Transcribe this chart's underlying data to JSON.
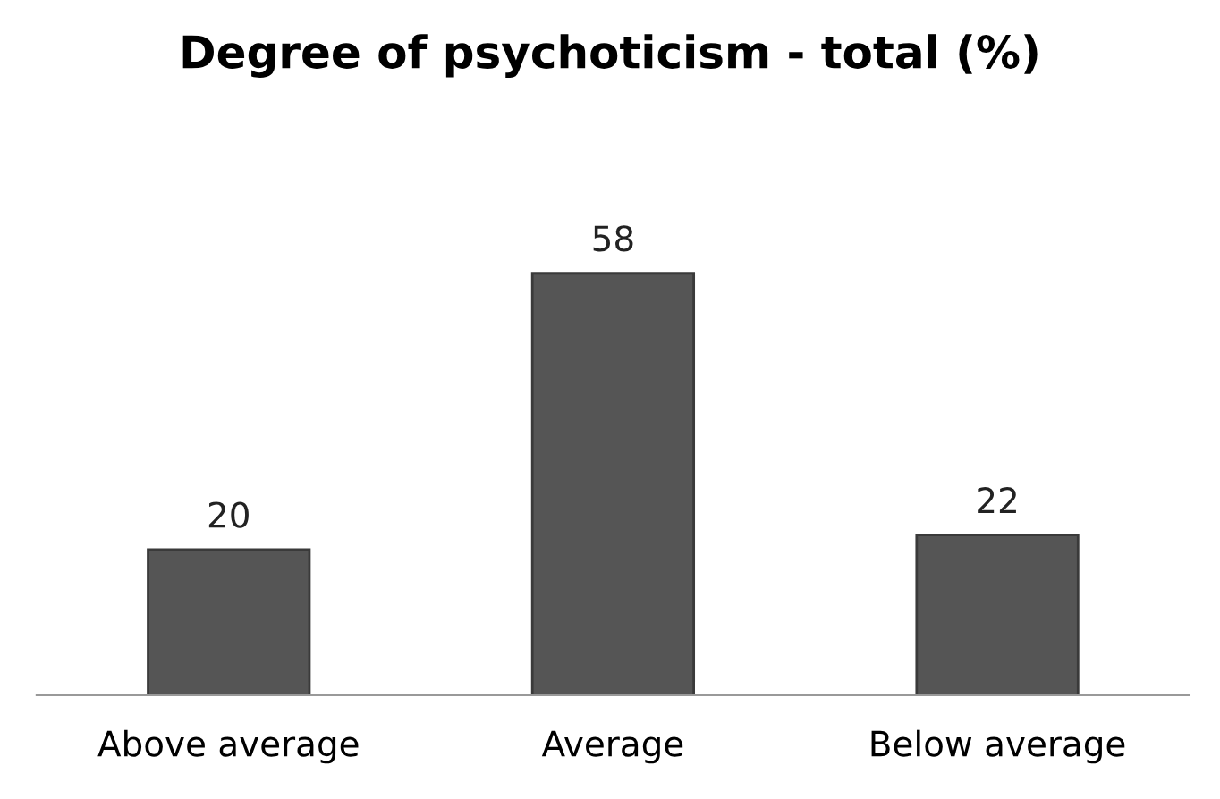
{
  "chart_data": {
    "type": "bar",
    "title": "Degree of psychoticism - total (%)",
    "categories": [
      "Above average",
      "Average",
      "Below average"
    ],
    "values": [
      20,
      58,
      22
    ],
    "color": "#555555",
    "data_labels": true,
    "grid": false,
    "legend": false
  }
}
